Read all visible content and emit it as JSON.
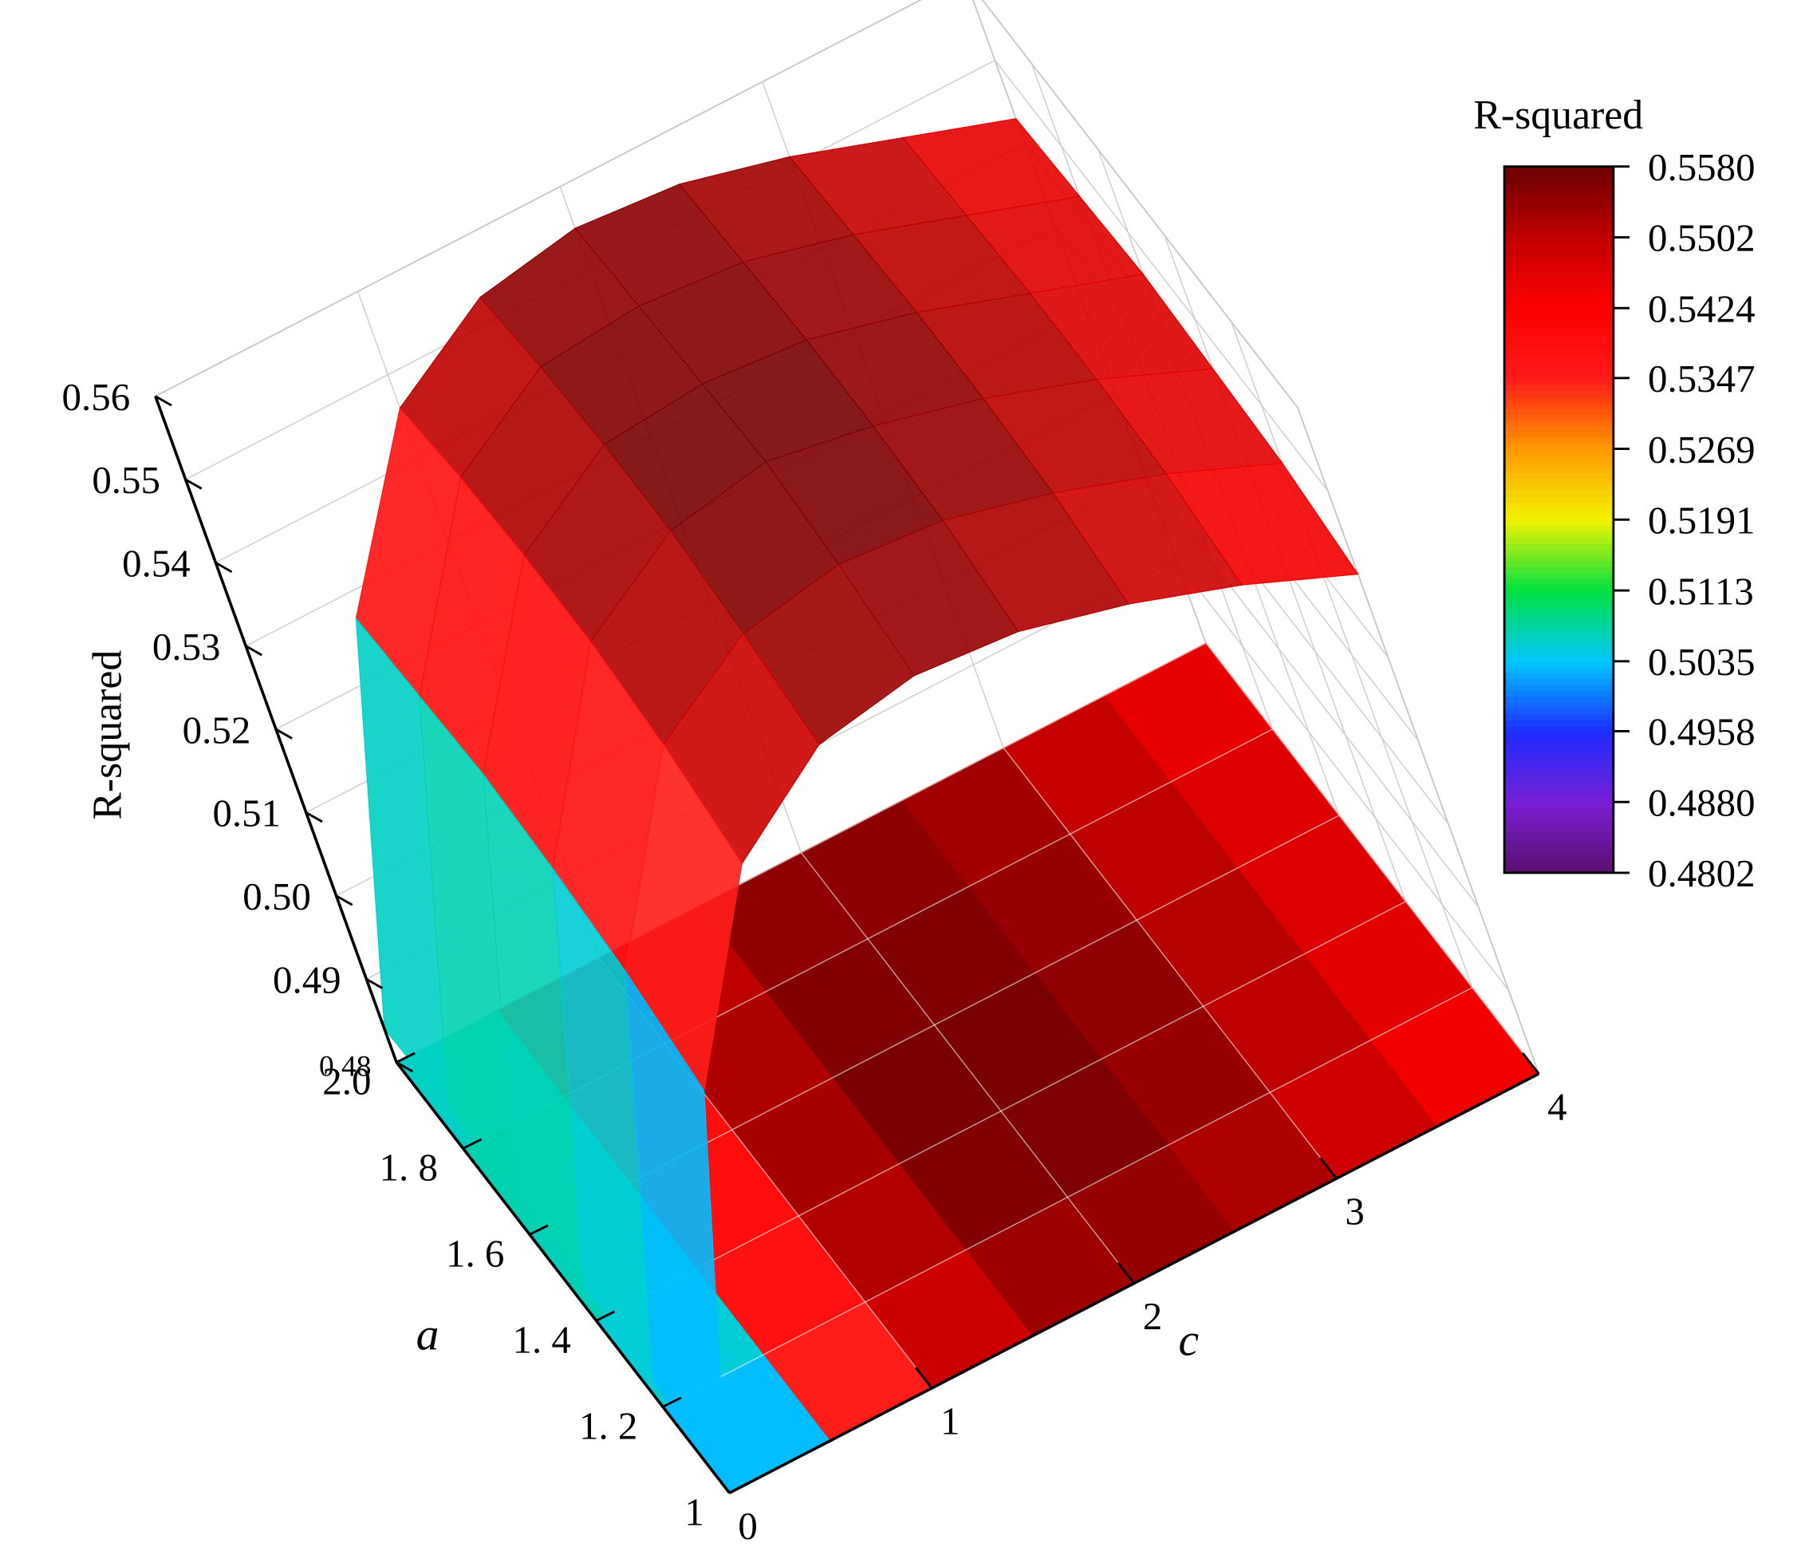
{
  "chart_data": {
    "type": "surface3d",
    "zlabel": "R-squared",
    "alabel": "a",
    "clabel": "c",
    "colorbar_title": "R-squared",
    "a": [
      1,
      1.2,
      1.4,
      1.6,
      1.8,
      2
    ],
    "c": [
      0,
      0.5,
      1,
      1.5,
      2,
      2.5,
      3,
      3.5,
      4
    ],
    "values": [
      [
        0.481,
        0.522,
        0.543,
        0.551,
        0.553,
        0.552,
        0.549,
        0.545,
        0.54
      ],
      [
        0.483,
        0.526,
        0.547,
        0.554,
        0.556,
        0.555,
        0.552,
        0.548,
        0.543
      ],
      [
        0.484,
        0.528,
        0.549,
        0.556,
        0.558,
        0.556,
        0.553,
        0.549,
        0.544
      ],
      [
        0.485,
        0.529,
        0.549,
        0.556,
        0.557,
        0.556,
        0.553,
        0.549,
        0.545
      ],
      [
        0.485,
        0.528,
        0.548,
        0.555,
        0.556,
        0.555,
        0.552,
        0.548,
        0.544
      ],
      [
        0.484,
        0.527,
        0.546,
        0.553,
        0.555,
        0.554,
        0.551,
        0.547,
        0.543
      ]
    ],
    "alim": [
      1,
      2
    ],
    "aticks": [
      1,
      {
        "value": 1.2,
        "label": "1. 2"
      },
      {
        "value": 1.4,
        "label": "1. 4"
      },
      {
        "value": 1.6,
        "label": "1. 6"
      },
      {
        "value": 1.8,
        "label": "1. 8"
      },
      {
        "value": 2,
        "label": "2.0"
      }
    ],
    "clim": [
      0,
      4
    ],
    "cticks": [
      0,
      1,
      2,
      3,
      4
    ],
    "zlim": [
      0.48,
      0.56
    ],
    "zticks": [
      0.48,
      0.49,
      {
        "value": 0.5,
        "label": "0.50"
      },
      0.51,
      0.52,
      0.53,
      0.54,
      0.55,
      0.56
    ],
    "colorbar_lim": [
      0.4802,
      0.558
    ],
    "colorbar_ticks": [
      0.4802,
      {
        "value": 0.488,
        "label": "0.4880"
      },
      0.4958,
      0.5035,
      0.5113,
      0.5191,
      0.5269,
      0.5347,
      0.5424,
      0.5502,
      {
        "value": 0.558,
        "label": "0.5580"
      }
    ],
    "colormap": [
      "#5a0f6e",
      "#7a1fd6",
      "#1d2cff",
      "#00c8ff",
      "#00e040",
      "#f2f200",
      "#ff9a00",
      "#ff1a1a",
      "#ff0000",
      "#c00000",
      "#6b0000"
    ],
    "grid": true
  }
}
